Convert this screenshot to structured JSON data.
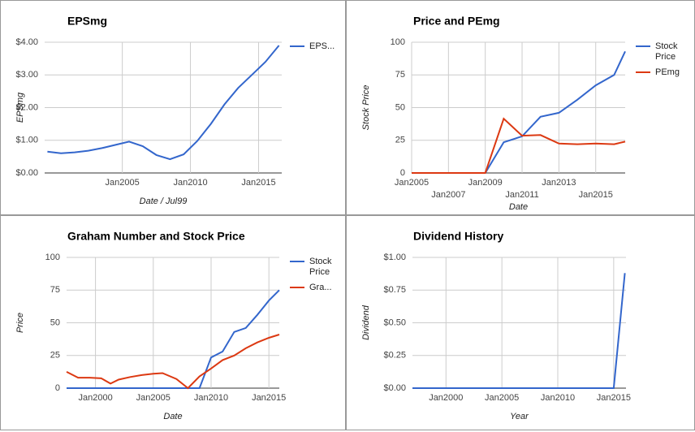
{
  "chart_data": [
    {
      "type": "line",
      "title": "EPSmg",
      "xlabel": "Date / Jul99",
      "ylabel": "EPSmg",
      "x": [
        1999.5,
        2000.5,
        2001.5,
        2002.5,
        2003.5,
        2004.5,
        2005.5,
        2006.5,
        2007.5,
        2008.5,
        2009.5,
        2010.5,
        2011.5,
        2012.5,
        2013.5,
        2014.5,
        2015.5,
        2016.5
      ],
      "series": [
        {
          "name": "EPS...",
          "color": "#3366cc",
          "values": [
            0.65,
            0.6,
            0.63,
            0.68,
            0.76,
            0.86,
            0.96,
            0.82,
            0.55,
            0.42,
            0.57,
            0.98,
            1.5,
            2.1,
            2.6,
            3.0,
            3.4,
            3.9
          ]
        }
      ],
      "xlim": [
        1999.3,
        2016.7
      ],
      "ylim": [
        0,
        4
      ],
      "xticks": [
        {
          "value": 2005,
          "label": "Jan2005"
        },
        {
          "value": 2010,
          "label": "Jan2010"
        },
        {
          "value": 2015,
          "label": "Jan2015"
        }
      ],
      "yticks": [
        {
          "value": 0,
          "label": "$0.00"
        },
        {
          "value": 1,
          "label": "$1.00"
        },
        {
          "value": 2,
          "label": "$2.00"
        },
        {
          "value": 3,
          "label": "$3.00"
        },
        {
          "value": 4,
          "label": "$4.00"
        }
      ],
      "grid": true,
      "legend": "right"
    },
    {
      "type": "line",
      "title": "Price and PEmg",
      "xlabel": "Date",
      "ylabel": "Stock Price",
      "x": [
        2005,
        2006,
        2007,
        2008,
        2009,
        2010,
        2011,
        2012,
        2013,
        2014,
        2015,
        2016,
        2016.6
      ],
      "series": [
        {
          "name": "Stock Price",
          "color": "#3366cc",
          "values": [
            0,
            0,
            0,
            0,
            0,
            23.5,
            28,
            43,
            46,
            56,
            67,
            75,
            93
          ]
        },
        {
          "name": "PEmg",
          "color": "#dc3912",
          "values": [
            0,
            0,
            0,
            0,
            0,
            41.5,
            28.5,
            29,
            22.5,
            22,
            22.5,
            22,
            24
          ]
        }
      ],
      "xlim": [
        2005,
        2016.6
      ],
      "ylim": [
        0,
        100
      ],
      "xticks": [
        {
          "value": 2005,
          "label": "Jan2005"
        },
        {
          "value": 2007,
          "label": "Jan2007"
        },
        {
          "value": 2009,
          "label": "Jan2009"
        },
        {
          "value": 2011,
          "label": "Jan2011"
        },
        {
          "value": 2013,
          "label": "Jan2013"
        },
        {
          "value": 2015,
          "label": "Jan2015"
        }
      ],
      "yticks": [
        0,
        25,
        50,
        75,
        100
      ],
      "grid": true,
      "legend": "right"
    },
    {
      "type": "line",
      "title": "Graham Number and Stock Price",
      "xlabel": "Date",
      "ylabel": "Price",
      "x": [
        1997.5,
        1998.5,
        1999.5,
        2000.5,
        2001.3,
        2002,
        2003,
        2004,
        2005,
        2005.8,
        2007,
        2008,
        2009,
        2010,
        2011,
        2012,
        2013,
        2014,
        2015,
        2015.9
      ],
      "series": [
        {
          "name": "Stock Price",
          "color": "#3366cc",
          "values": [
            0,
            0,
            0,
            0,
            0,
            0,
            0,
            0,
            0,
            0,
            0,
            0,
            0,
            23.5,
            28,
            43,
            46,
            56,
            67,
            75
          ]
        },
        {
          "name": "Gra...",
          "color": "#dc3912",
          "values": [
            12.5,
            8,
            8,
            7.5,
            3.5,
            6.5,
            8.5,
            10,
            11,
            11.5,
            7,
            0,
            9,
            15,
            21.5,
            25,
            30.5,
            35,
            38.5,
            41
          ]
        }
      ],
      "xlim": [
        1997.5,
        2015.9
      ],
      "ylim": [
        0,
        100
      ],
      "xticks": [
        {
          "value": 2000,
          "label": "Jan2000"
        },
        {
          "value": 2005,
          "label": "Jan2005"
        },
        {
          "value": 2010,
          "label": "Jan2010"
        },
        {
          "value": 2015,
          "label": "Jan2015"
        }
      ],
      "yticks": [
        0,
        25,
        50,
        75,
        100
      ],
      "grid": true,
      "legend": "right"
    },
    {
      "type": "line",
      "title": "Dividend History",
      "xlabel": "Year",
      "ylabel": "Dividend",
      "x": [
        1997,
        2015,
        2016
      ],
      "series": [
        {
          "color": "#3366cc",
          "values": [
            0,
            0,
            0.88
          ]
        }
      ],
      "xlim": [
        1997,
        2016.1
      ],
      "ylim": [
        0,
        1
      ],
      "xticks": [
        {
          "value": 2000,
          "label": "Jan2000"
        },
        {
          "value": 2005,
          "label": "Jan2005"
        },
        {
          "value": 2010,
          "label": "Jan2010"
        },
        {
          "value": 2015,
          "label": "Jan2015"
        }
      ],
      "yticks": [
        {
          "value": 0,
          "label": "$0.00"
        },
        {
          "value": 0.25,
          "label": "$0.25"
        },
        {
          "value": 0.5,
          "label": "$0.50"
        },
        {
          "value": 0.75,
          "label": "$0.75"
        },
        {
          "value": 1,
          "label": "$1.00"
        }
      ],
      "grid": true
    }
  ]
}
